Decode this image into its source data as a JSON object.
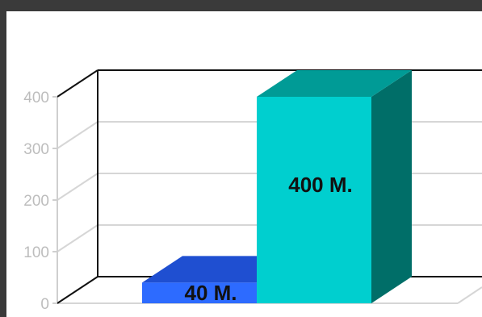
{
  "chart_data": {
    "type": "bar",
    "categories": [
      "",
      ""
    ],
    "values": [
      40,
      400
    ],
    "data_labels": [
      "40 M.",
      "400 M."
    ],
    "ylim": [
      0,
      400
    ],
    "yticks": [
      "0",
      "100",
      "200",
      "300",
      "400"
    ],
    "grid": true,
    "style": "3d",
    "colors": {
      "bar1": {
        "front": "#2d6bff",
        "top": "#1f4fd1",
        "side": "#1c46b8"
      },
      "bar2": {
        "front": "#00cfcf",
        "top": "#009b96",
        "side": "#006e68"
      },
      "grid": "#d6d6d6",
      "axis": "#111111"
    }
  }
}
